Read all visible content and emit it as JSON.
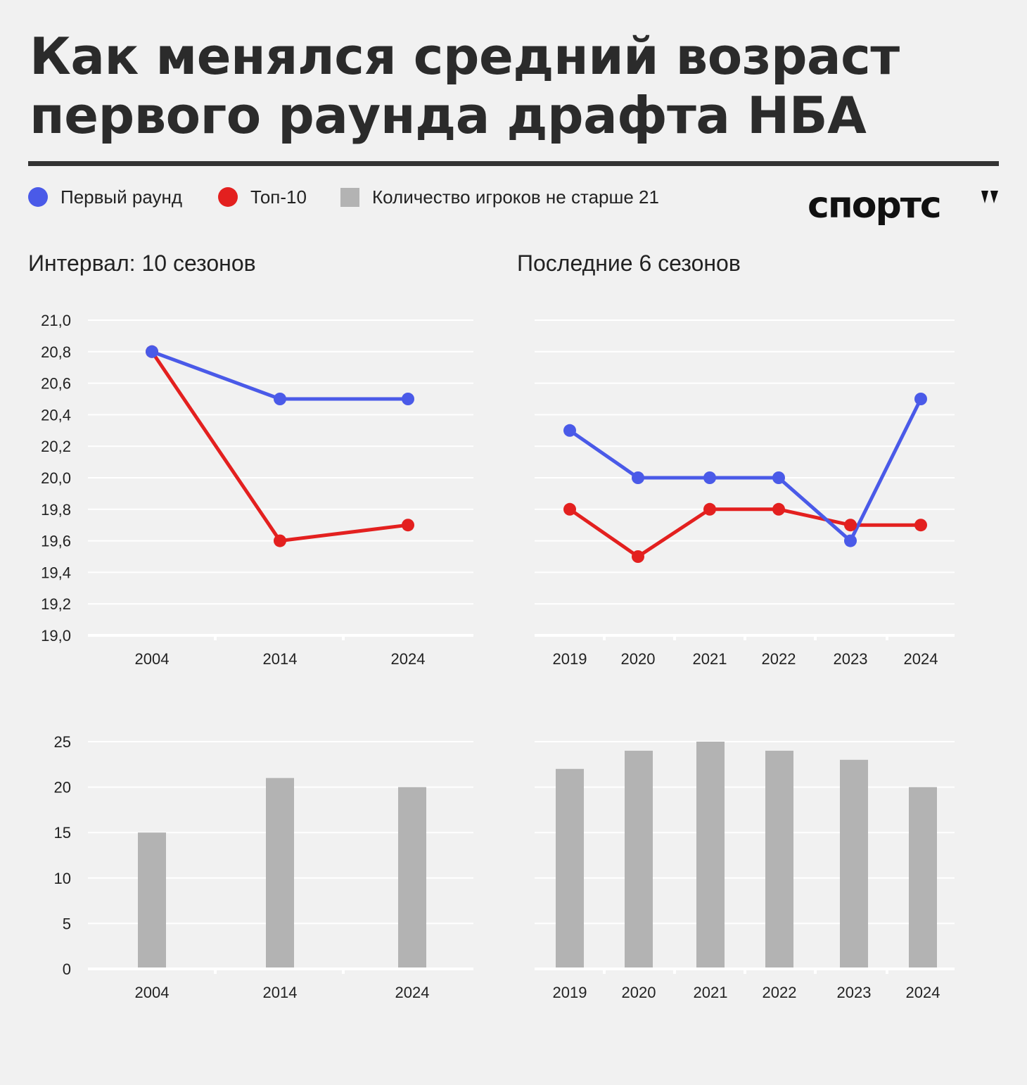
{
  "title": "Как менялся средний возраст первого раунда драфта НБА",
  "legend": [
    {
      "label": "Первый раунд",
      "color": "#4a5ae8",
      "shape": "circle"
    },
    {
      "label": "Топ-10",
      "color": "#e3201f",
      "shape": "circle"
    },
    {
      "label": "Количество игроков не старше 21",
      "color": "#b3b3b3",
      "shape": "square"
    }
  ],
  "logo": "спортс",
  "subtitles": {
    "left": "Интервал: 10 сезонов",
    "right": "Последние 6 сезонов"
  },
  "chart_data": [
    {
      "type": "line",
      "x": [
        "2004",
        "2014",
        "2024"
      ],
      "series": [
        {
          "name": "Первый раунд",
          "color": "#4a5ae8",
          "values": [
            20.8,
            20.5,
            20.5
          ]
        },
        {
          "name": "Топ-10",
          "color": "#e3201f",
          "values": [
            20.8,
            19.6,
            19.7
          ]
        }
      ],
      "yticks": [
        "21,0",
        "20,8",
        "20,6",
        "20,4",
        "20,2",
        "20,0",
        "19,8",
        "19,6",
        "19,4",
        "19,2",
        "19,0"
      ],
      "ylim": [
        19.0,
        21.0
      ],
      "grid": true
    },
    {
      "type": "line",
      "x": [
        "2019",
        "2020",
        "2021",
        "2022",
        "2023",
        "2024"
      ],
      "series": [
        {
          "name": "Первый раунд",
          "color": "#4a5ae8",
          "values": [
            20.3,
            20.0,
            20.0,
            20.0,
            19.6,
            20.5
          ]
        },
        {
          "name": "Топ-10",
          "color": "#e3201f",
          "values": [
            19.8,
            19.5,
            19.8,
            19.8,
            19.7,
            19.7
          ]
        }
      ],
      "ylim": [
        19.0,
        21.0
      ],
      "grid": true
    },
    {
      "type": "bar",
      "categories": [
        "2004",
        "2014",
        "2024"
      ],
      "series": [
        {
          "name": "Количество игроков не старше 21",
          "color": "#b3b3b3",
          "values": [
            15,
            21,
            20
          ]
        }
      ],
      "yticks": [
        "25",
        "20",
        "15",
        "10",
        "5",
        "0"
      ],
      "ylim": [
        0,
        25
      ],
      "grid": true
    },
    {
      "type": "bar",
      "categories": [
        "2019",
        "2020",
        "2021",
        "2022",
        "2023",
        "2024"
      ],
      "series": [
        {
          "name": "Количество игроков не старше 21",
          "color": "#b3b3b3",
          "values": [
            22,
            24,
            25,
            24,
            23,
            20
          ]
        }
      ],
      "ylim": [
        0,
        25
      ],
      "grid": true
    }
  ]
}
